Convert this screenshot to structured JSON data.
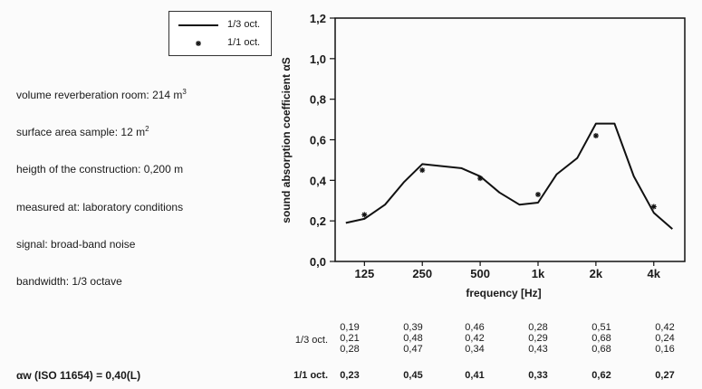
{
  "legend": {
    "line_label": "1/3 oct.",
    "marker_label": "1/1 oct."
  },
  "info": {
    "volume": "volume reverberation room: 214 m",
    "volume_sup": "3",
    "surface": "surface area sample: 12 m",
    "surface_sup": "2",
    "height": "heigth of the construction: 0,200 m",
    "measured": "measured at: laboratory conditions",
    "signal": "signal: broad-band noise",
    "bandwidth": "bandwidth: 1/3 octave"
  },
  "alpha_w": "αw (ISO 11654) = 0,40(L)",
  "table": {
    "third_oct_label": "1/3 oct.",
    "one_oct_label": "1/1 oct.",
    "bands": [
      "125",
      "250",
      "500",
      "1k",
      "2k",
      "4k"
    ],
    "third_oct_values": [
      [
        "0,19",
        "0,21",
        "0,28"
      ],
      [
        "0,39",
        "0,48",
        "0,47"
      ],
      [
        "0,46",
        "0,42",
        "0,34"
      ],
      [
        "0,28",
        "0,29",
        "0,43"
      ],
      [
        "0,51",
        "0,68",
        "0,68"
      ],
      [
        "0,42",
        "0,24",
        "0,16"
      ]
    ],
    "one_oct_values": [
      "0,23",
      "0,45",
      "0,41",
      "0,33",
      "0,62",
      "0,27"
    ]
  },
  "chart_data": {
    "type": "line",
    "xlabel": "frequency [Hz]",
    "ylabel": "sound absorption coefficient αS",
    "x_scale": "log",
    "x_ticks": [
      "125",
      "250",
      "500",
      "1k",
      "2k",
      "4k"
    ],
    "y_ticks": [
      "0,0",
      "0,2",
      "0,4",
      "0,6",
      "0,8",
      "1,0",
      "1,2"
    ],
    "ylim": [
      0,
      1.2
    ],
    "grid": false,
    "legend_position": "top-left",
    "series": [
      {
        "name": "1/3 oct.",
        "style": "line",
        "x": [
          100,
          125,
          160,
          200,
          250,
          315,
          400,
          500,
          630,
          800,
          1000,
          1250,
          1600,
          2000,
          2500,
          3150,
          4000,
          5000
        ],
        "y": [
          0.19,
          0.21,
          0.28,
          0.39,
          0.48,
          0.47,
          0.46,
          0.42,
          0.34,
          0.28,
          0.29,
          0.43,
          0.51,
          0.68,
          0.68,
          0.42,
          0.24,
          0.16
        ]
      },
      {
        "name": "1/1 oct.",
        "style": "marker",
        "x": [
          125,
          250,
          500,
          1000,
          2000,
          4000
        ],
        "y": [
          0.23,
          0.45,
          0.41,
          0.33,
          0.62,
          0.27
        ]
      }
    ]
  }
}
